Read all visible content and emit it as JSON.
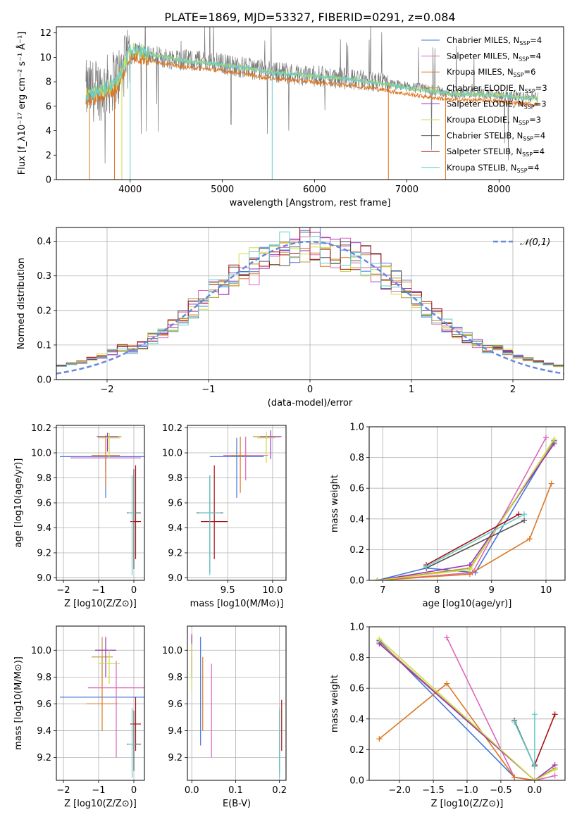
{
  "figure_title": "PLATE=1869, MJD=53327, FIBERID=0291, z=0.084",
  "colors": {
    "chabrier_miles": "#4477dd",
    "salpeter_miles": "#dd66bb",
    "kroupa_miles": "#dd7722",
    "chabrier_elodie": "#bb9933",
    "salpeter_elodie": "#9933bb",
    "kroupa_elodie": "#ccdd44",
    "chabrier_stelib": "#555555",
    "salpeter_stelib": "#aa1111",
    "kroupa_stelib": "#66cccc",
    "data_gray": "#777777",
    "normal_curve": "#6688dd",
    "grid": "#b0b0b0"
  },
  "chart_data": [
    {
      "id": "spectrum",
      "type": "line",
      "xlabel": "wavelength [Angstrom, rest frame]",
      "ylabel": "Flux [f_λ10⁻¹⁷ erg cm⁻² s⁻¹ Å⁻¹]",
      "xlim": [
        3200,
        8700
      ],
      "ylim": [
        0,
        12.5
      ],
      "xticks": [
        4000,
        5000,
        6000,
        7000,
        8000
      ],
      "yticks": [
        0,
        2,
        4,
        6,
        8,
        10,
        12
      ],
      "grid": false,
      "legend_position": "top-right",
      "legend": [
        {
          "label": "Chabrier MILES, N",
          "sub": "SSP",
          "suffix": "=4",
          "color_key": "chabrier_miles"
        },
        {
          "label": "Salpeter MILES, N",
          "sub": "SSP",
          "suffix": "=4",
          "color_key": "salpeter_miles"
        },
        {
          "label": "Kroupa MILES, N",
          "sub": "SSP",
          "suffix": "=6",
          "color_key": "kroupa_miles"
        },
        {
          "label": "Chabrier ELODIE, N",
          "sub": "SSP",
          "suffix": "=3",
          "color_key": "chabrier_elodie"
        },
        {
          "label": "Salpeter ELODIE, N",
          "sub": "SSP",
          "suffix": "=3",
          "color_key": "salpeter_elodie"
        },
        {
          "label": "Kroupa ELODIE, N",
          "sub": "SSP",
          "suffix": "=3",
          "color_key": "kroupa_elodie"
        },
        {
          "label": "Chabrier STELIB, N",
          "sub": "SSP",
          "suffix": "=4",
          "color_key": "chabrier_stelib"
        },
        {
          "label": "Salpeter STELIB, N",
          "sub": "SSP",
          "suffix": "=4",
          "color_key": "salpeter_stelib"
        },
        {
          "label": "Kroupa STELIB, N",
          "sub": "SSP",
          "suffix": "=4",
          "color_key": "kroupa_stelib"
        }
      ],
      "data_continuum": [
        [
          3520,
          7.2
        ],
        [
          3700,
          7.4
        ],
        [
          3900,
          8.6
        ],
        [
          4000,
          10.2
        ],
        [
          4100,
          10.4
        ],
        [
          4300,
          10.0
        ],
        [
          4600,
          9.8
        ],
        [
          4900,
          9.6
        ],
        [
          5200,
          9.2
        ],
        [
          5500,
          8.9
        ],
        [
          5800,
          8.6
        ],
        [
          6100,
          8.4
        ],
        [
          6400,
          8.2
        ],
        [
          6700,
          7.9
        ],
        [
          7000,
          7.6
        ],
        [
          7300,
          7.3
        ],
        [
          7500,
          7.0
        ],
        [
          7800,
          7.1
        ],
        [
          8000,
          6.9
        ],
        [
          8200,
          6.8
        ],
        [
          8400,
          6.7
        ]
      ],
      "model_continuum": [
        [
          3520,
          7.0
        ],
        [
          3700,
          7.3
        ],
        [
          3850,
          7.9
        ],
        [
          3950,
          9.6
        ],
        [
          4000,
          10.6
        ],
        [
          4100,
          10.5
        ],
        [
          4300,
          10.1
        ],
        [
          4600,
          9.7
        ],
        [
          4900,
          9.5
        ],
        [
          5200,
          9.2
        ],
        [
          5500,
          8.8
        ],
        [
          5800,
          8.6
        ],
        [
          6100,
          8.4
        ],
        [
          6400,
          8.2
        ],
        [
          6700,
          7.9
        ],
        [
          7000,
          7.5
        ],
        [
          7300,
          7.2
        ],
        [
          7500,
          7.0
        ],
        [
          7800,
          7.0
        ],
        [
          8000,
          6.9
        ],
        [
          8200,
          6.75
        ],
        [
          8400,
          6.65
        ]
      ]
    },
    {
      "id": "residuals",
      "type": "histogram",
      "xlabel": "(data-model)/error",
      "ylabel": "Normed distribution",
      "xlim": [
        -2.5,
        2.5
      ],
      "ylim": [
        0,
        0.44
      ],
      "xticks": [
        -2,
        -1,
        0,
        1,
        2
      ],
      "yticks": [
        0.0,
        0.1,
        0.2,
        0.3,
        0.4
      ],
      "grid": true,
      "legend_position": "top-right",
      "legend_label": "𝒩(0,1)",
      "bin_width": 0.1,
      "reference_curve": "standard normal, mean 0, sigma 1"
    },
    {
      "id": "age_vs_Z",
      "type": "errorbar",
      "xlabel": "Z [log10(Z/Z⊙)]",
      "ylabel": "age  [log10(age/yr)]",
      "xlim": [
        -2.2,
        0.3
      ],
      "ylim": [
        8.98,
        10.22
      ],
      "xticks": [
        -2,
        -1,
        0
      ],
      "yticks": [
        9.0,
        9.2,
        9.4,
        9.6,
        9.8,
        10.0,
        10.2
      ],
      "grid": true,
      "points": [
        {
          "m": "chabrier_miles",
          "x": -0.8,
          "y": 9.97,
          "xerr": 1.3,
          "yerr": 0.0,
          "yerr_lo": 0.33,
          "yerr_hi": 0.0
        },
        {
          "m": "salpeter_miles",
          "x": -0.8,
          "y": 9.96,
          "xerr": 1.0,
          "yerr_lo": 0.1,
          "yerr_hi": 0.0
        },
        {
          "m": "kroupa_miles",
          "x": -0.8,
          "y": 9.98,
          "xerr": 0.4,
          "yerr_lo": 0.25,
          "yerr_hi": 0.16
        },
        {
          "m": "chabrier_elodie",
          "x": -0.7,
          "y": 10.13,
          "xerr": 0.35,
          "yerr_lo": 0.0,
          "yerr_hi": 0.0
        },
        {
          "m": "salpeter_elodie",
          "x": -0.75,
          "y": 10.13,
          "xerr": 0.3,
          "yerr_lo": 0.12,
          "yerr_hi": 0.03
        },
        {
          "m": "kroupa_elodie",
          "x": -0.7,
          "y": 10.12,
          "xerr": 0.3,
          "yerr_lo": 0.16,
          "yerr_hi": 0.04
        },
        {
          "m": "chabrier_stelib",
          "x": 0.0,
          "y": 9.52,
          "xerr": 0.2,
          "yerr_lo": 0.45,
          "yerr_hi": 0.35
        },
        {
          "m": "salpeter_stelib",
          "x": 0.05,
          "y": 9.45,
          "xerr": 0.15,
          "yerr_lo": 0.3,
          "yerr_hi": 0.45
        },
        {
          "m": "kroupa_stelib",
          "x": -0.05,
          "y": 9.52,
          "xerr": 0.1,
          "yerr_lo": 0.5,
          "yerr_hi": 0.3
        }
      ]
    },
    {
      "id": "age_vs_mass",
      "type": "errorbar",
      "xlabel": "mass [log10(M/M⊙)]",
      "xlim": [
        9.05,
        10.15
      ],
      "ylim": [
        8.98,
        10.22
      ],
      "xticks": [
        9.5,
        10.0
      ],
      "yticks": [
        9.0,
        9.2,
        9.4,
        9.6,
        9.8,
        10.0,
        10.2
      ],
      "grid": true,
      "points": [
        {
          "m": "chabrier_miles",
          "x": 9.6,
          "y": 9.97,
          "xerr": 0.3,
          "yerr_lo": 0.33,
          "yerr_hi": 0.15
        },
        {
          "m": "salpeter_miles",
          "x": 9.7,
          "y": 9.98,
          "xerr": 0.25,
          "yerr_lo": 0.2,
          "yerr_hi": 0.15
        },
        {
          "m": "kroupa_miles",
          "x": 9.64,
          "y": 9.98,
          "xerr": 0.1,
          "yerr_lo": 0.3,
          "yerr_hi": 0.15
        },
        {
          "m": "chabrier_elodie",
          "x": 9.93,
          "y": 10.13,
          "xerr": 0.15,
          "yerr_lo": 0.0,
          "yerr_hi": 0.0
        },
        {
          "m": "salpeter_elodie",
          "x": 9.98,
          "y": 10.13,
          "xerr": 0.12,
          "yerr_lo": 0.18,
          "yerr_hi": 0.05
        },
        {
          "m": "kroupa_elodie",
          "x": 9.93,
          "y": 10.12,
          "xerr": 0.1,
          "yerr_lo": 0.2,
          "yerr_hi": 0.05
        },
        {
          "m": "chabrier_stelib",
          "x": 9.3,
          "y": 9.52,
          "xerr": 0.15,
          "yerr_lo": 0.48,
          "yerr_hi": 0.3
        },
        {
          "m": "salpeter_stelib",
          "x": 9.35,
          "y": 9.45,
          "xerr": 0.15,
          "yerr_lo": 0.3,
          "yerr_hi": 0.45
        },
        {
          "m": "kroupa_stelib",
          "x": 9.3,
          "y": 9.52,
          "xerr": 0.12,
          "yerr_lo": 0.5,
          "yerr_hi": 0.3
        }
      ]
    },
    {
      "id": "mass_weight_vs_age",
      "type": "line",
      "xlabel": "age  [log10(age/yr)]",
      "ylabel": "mass weight",
      "xlim": [
        6.75,
        10.35
      ],
      "ylim": [
        0,
        1.0
      ],
      "xticks": [
        7,
        8,
        9,
        10
      ],
      "yticks": [
        0.0,
        0.2,
        0.4,
        0.6,
        0.8,
        1.0
      ],
      "grid": true,
      "series": [
        {
          "m": "chabrier_miles",
          "x": [
            6.9,
            7.8,
            8.7,
            10.15
          ],
          "y": [
            0.0,
            0.08,
            0.05,
            0.91
          ]
        },
        {
          "m": "salpeter_miles",
          "x": [
            6.9,
            8.65,
            10.0
          ],
          "y": [
            0.0,
            0.05,
            0.93
          ]
        },
        {
          "m": "kroupa_miles",
          "x": [
            6.9,
            8.6,
            9.7,
            10.1
          ],
          "y": [
            0.0,
            0.04,
            0.27,
            0.63
          ]
        },
        {
          "m": "chabrier_elodie",
          "x": [
            6.9,
            8.6,
            10.15
          ],
          "y": [
            0.0,
            0.08,
            0.9
          ]
        },
        {
          "m": "salpeter_elodie",
          "x": [
            6.9,
            8.6,
            10.15
          ],
          "y": [
            0.0,
            0.1,
            0.89
          ]
        },
        {
          "m": "kroupa_elodie",
          "x": [
            6.9,
            8.6,
            10.15
          ],
          "y": [
            0.0,
            0.07,
            0.92
          ]
        },
        {
          "m": "chabrier_stelib",
          "x": [
            7.8,
            9.6
          ],
          "y": [
            0.08,
            0.39
          ]
        },
        {
          "m": "salpeter_stelib",
          "x": [
            7.8,
            9.5
          ],
          "y": [
            0.1,
            0.43
          ]
        },
        {
          "m": "kroupa_stelib",
          "x": [
            7.8,
            9.6
          ],
          "y": [
            0.09,
            0.43
          ]
        }
      ]
    },
    {
      "id": "mass_vs_Z",
      "type": "errorbar",
      "xlabel": "Z [log10(Z/Z⊙)]",
      "ylabel": "mass [log10(M/M⊙)]",
      "xlim": [
        -2.2,
        0.3
      ],
      "ylim": [
        9.03,
        10.18
      ],
      "xticks": [
        -2,
        -1,
        0
      ],
      "yticks": [
        9.2,
        9.4,
        9.6,
        9.8,
        10.0
      ],
      "grid": true,
      "points": [
        {
          "m": "chabrier_miles",
          "x": -0.8,
          "y": 9.65,
          "xerr": 1.3,
          "yerr_lo": 0.0,
          "yerr_hi": 0.0
        },
        {
          "m": "salpeter_miles",
          "x": -0.5,
          "y": 9.72,
          "xerr": 0.8,
          "yerr_lo": 0.52,
          "yerr_hi": 0.2
        },
        {
          "m": "kroupa_miles",
          "x": -0.9,
          "y": 9.6,
          "xerr": 0.45,
          "yerr_lo": 0.2,
          "yerr_hi": 0.35
        },
        {
          "m": "chabrier_elodie",
          "x": -0.9,
          "y": 9.95,
          "xerr": 0.3,
          "yerr_lo": 0.15,
          "yerr_hi": 0.15
        },
        {
          "m": "salpeter_elodie",
          "x": -0.8,
          "y": 10.0,
          "xerr": 0.3,
          "yerr_lo": 0.2,
          "yerr_hi": 0.1
        },
        {
          "m": "kroupa_elodie",
          "x": -0.7,
          "y": 9.9,
          "xerr": 0.3,
          "yerr_lo": 0.15,
          "yerr_hi": 0.1
        },
        {
          "m": "chabrier_stelib",
          "x": 0.0,
          "y": 9.3,
          "xerr": 0.2,
          "yerr_lo": 0.2,
          "yerr_hi": 0.25
        },
        {
          "m": "salpeter_stelib",
          "x": 0.05,
          "y": 9.45,
          "xerr": 0.15,
          "yerr_lo": 0.2,
          "yerr_hi": 0.2
        },
        {
          "m": "kroupa_stelib",
          "x": -0.05,
          "y": 9.3,
          "xerr": 0.1,
          "yerr_lo": 0.25,
          "yerr_hi": 0.27
        }
      ]
    },
    {
      "id": "mass_vs_ebv",
      "type": "errorbar",
      "xlabel": "E(B-V)",
      "xlim": [
        -0.01,
        0.215
      ],
      "ylim": [
        9.03,
        10.18
      ],
      "xticks": [
        0.0,
        0.1,
        0.2
      ],
      "yticks": [
        9.2,
        9.4,
        9.6,
        9.8,
        10.0
      ],
      "grid": true,
      "points": [
        {
          "m": "chabrier_miles",
          "x": 0.02,
          "y": 9.65,
          "xerr": 0,
          "yerr_lo": 0.36,
          "yerr_hi": 0.45
        },
        {
          "m": "salpeter_miles",
          "x": 0.045,
          "y": 9.72,
          "xerr": 0,
          "yerr_lo": 0.52,
          "yerr_hi": 0.18
        },
        {
          "m": "kroupa_miles",
          "x": 0.025,
          "y": 9.6,
          "xerr": 0,
          "yerr_lo": 0.2,
          "yerr_hi": 0.35
        },
        {
          "m": "chabrier_elodie",
          "x": 0.0,
          "y": 9.95,
          "xerr": 0,
          "yerr_lo": 0.15,
          "yerr_hi": 0.15
        },
        {
          "m": "salpeter_elodie",
          "x": 0.0,
          "y": 10.0,
          "xerr": 0,
          "yerr_lo": 0.2,
          "yerr_hi": 0.12
        },
        {
          "m": "kroupa_elodie",
          "x": 0.0,
          "y": 9.9,
          "xerr": 0,
          "yerr_lo": 0.2,
          "yerr_hi": 0.15
        },
        {
          "m": "chabrier_stelib",
          "x": 0.2,
          "y": 9.3,
          "xerr": 0,
          "yerr_lo": 0.22,
          "yerr_hi": 0.25
        },
        {
          "m": "salpeter_stelib",
          "x": 0.205,
          "y": 9.45,
          "xerr": 0,
          "yerr_lo": 0.2,
          "yerr_hi": 0.18
        },
        {
          "m": "kroupa_stelib",
          "x": 0.2,
          "y": 9.3,
          "xerr": 0,
          "yerr_lo": 0.25,
          "yerr_hi": 0.27
        }
      ]
    },
    {
      "id": "mass_weight_vs_Z",
      "type": "line",
      "xlabel": "Z [log10(Z/Z⊙)]",
      "ylabel": "mass weight",
      "xlim": [
        -2.45,
        0.45
      ],
      "ylim": [
        0,
        1.0
      ],
      "xticks": [
        -2.0,
        -1.5,
        -1.0,
        -0.5,
        0.0
      ],
      "xtick_labels": [
        "−2.0",
        "−1.5",
        "−1.0",
        "−0.5",
        "0.0"
      ],
      "yticks": [
        0.0,
        0.2,
        0.4,
        0.6,
        0.8,
        1.0
      ],
      "grid": true,
      "series": [
        {
          "m": "chabrier_miles",
          "x": [
            -2.3,
            -0.3,
            0.0
          ],
          "y": [
            0.91,
            0.02,
            0.0
          ]
        },
        {
          "m": "salpeter_miles",
          "x": [
            -1.3,
            -0.3,
            0.0,
            0.3
          ],
          "y": [
            0.93,
            0.02,
            0.0,
            0.03
          ]
        },
        {
          "m": "kroupa_miles",
          "x": [
            -2.3,
            -1.3,
            -0.3,
            0.0
          ],
          "y": [
            0.27,
            0.63,
            0.02,
            0.0
          ]
        },
        {
          "m": "chabrier_elodie",
          "x": [
            -2.3,
            0.0,
            0.3
          ],
          "y": [
            0.9,
            0.0,
            0.08
          ]
        },
        {
          "m": "salpeter_elodie",
          "x": [
            -2.3,
            0.0,
            0.3
          ],
          "y": [
            0.89,
            0.0,
            0.1
          ]
        },
        {
          "m": "kroupa_elodie",
          "x": [
            -2.3,
            0.0,
            0.3
          ],
          "y": [
            0.92,
            0.0,
            0.07
          ]
        },
        {
          "m": "chabrier_stelib",
          "x": [
            -0.3,
            0.0
          ],
          "y": [
            0.39,
            0.09
          ]
        },
        {
          "m": "salpeter_stelib",
          "x": [
            0.0,
            0.3
          ],
          "y": [
            0.1,
            0.43
          ]
        },
        {
          "m": "kroupa_stelib",
          "x": [
            -0.3,
            0.0,
            0.0
          ],
          "y": [
            0.38,
            0.09,
            0.43
          ]
        }
      ]
    }
  ]
}
